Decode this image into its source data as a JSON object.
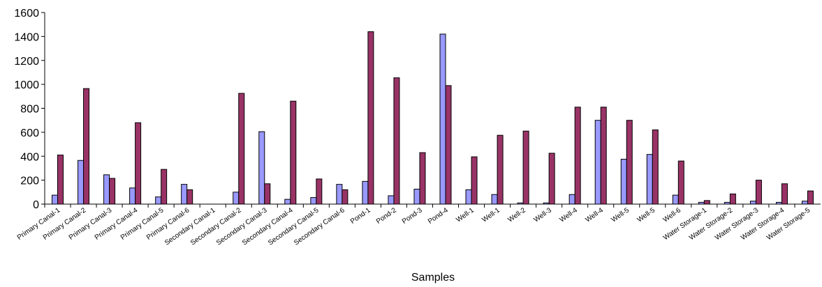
{
  "chart_data": {
    "type": "bar",
    "x_label": "Samples",
    "categories": [
      "Primary Canal-1",
      "Primary Canal-2",
      "Primary Canal-3",
      "Primary Canal-4",
      "Primary Canal-5",
      "Primary Canal-6",
      "Secondary Canal-1",
      "Secondary Canal-2",
      "Secondary Canal-3",
      "Secondary Canal-4",
      "Secondary Canal-5",
      "Secondary Canal-6",
      "Pond-1",
      "Pond-2",
      "Pond-3",
      "Pond-4",
      "Well-1",
      "Well-1",
      "Well-2",
      "Well-3",
      "Well-4",
      "Well-4",
      "Well-5",
      "Well-5",
      "Well-6",
      "Water Storage-1",
      "Water Storage-2",
      "Water Storage-3",
      "Water Storage-4",
      "Water Storage-5"
    ],
    "series": [
      {
        "color": "#9999ff",
        "values": [
          75,
          365,
          245,
          135,
          60,
          165,
          0,
          100,
          605,
          40,
          55,
          165,
          190,
          70,
          125,
          1420,
          120,
          80,
          10,
          10,
          80,
          700,
          375,
          415,
          75,
          15,
          15,
          25,
          15,
          25
        ]
      },
      {
        "color": "#993366",
        "values": [
          410,
          965,
          215,
          680,
          290,
          120,
          0,
          925,
          170,
          860,
          210,
          120,
          1440,
          1055,
          430,
          990,
          395,
          575,
          610,
          425,
          810,
          810,
          700,
          620,
          360,
          30,
          85,
          200,
          170,
          110
        ]
      }
    ],
    "ylim": [
      0,
      1600
    ],
    "yticks": [
      0,
      200,
      400,
      600,
      800,
      1000,
      1200,
      1400,
      1600
    ],
    "grid": false
  }
}
